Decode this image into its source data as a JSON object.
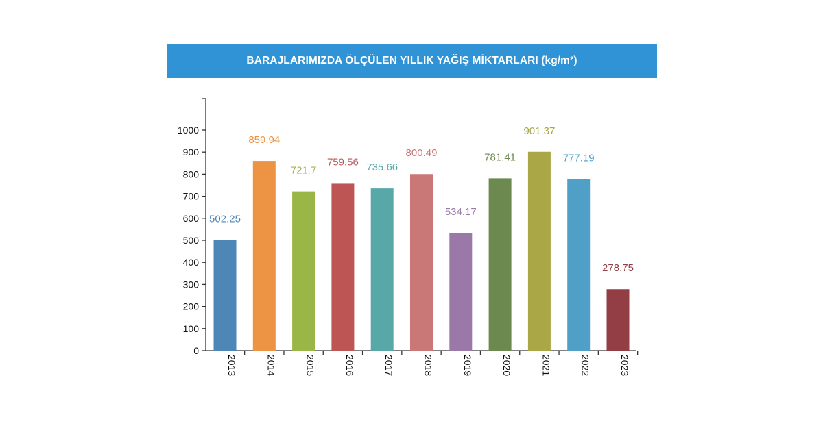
{
  "chart_data": {
    "type": "bar",
    "title": "BARAJLARIMIZDA ÖLÇÜLEN YILLIK YAĞIŞ MİKTARLARI (kg/m²)",
    "xlabel": "",
    "ylabel": "",
    "ylim": [
      0,
      1000
    ],
    "yticks": [
      0,
      100,
      200,
      300,
      400,
      500,
      600,
      700,
      800,
      900,
      1000
    ],
    "grid": false,
    "categories": [
      "2013",
      "2014",
      "2015",
      "2016",
      "2017",
      "2018",
      "2019",
      "2020",
      "2021",
      "2022",
      "2023"
    ],
    "values": [
      502.25,
      859.94,
      721.7,
      759.56,
      735.66,
      800.49,
      534.17,
      781.41,
      901.37,
      777.19,
      278.75
    ],
    "value_labels": [
      "502.25",
      "859.94",
      "721.7",
      "759.56",
      "735.66",
      "800.49",
      "534.17",
      "781.41",
      "901.37",
      "777.19",
      "278.75"
    ],
    "bar_colors": [
      "#4f86b8",
      "#ec9444",
      "#9ab647",
      "#bd5555",
      "#58a8a8",
      "#ca7777",
      "#9a78a8",
      "#6c8a50",
      "#a9a746",
      "#4f9fc7",
      "#923e44"
    ],
    "label_colors": [
      "#4f86b8",
      "#ec9444",
      "#9ab647",
      "#bd5555",
      "#58a8a8",
      "#ca7777",
      "#9a78a8",
      "#6c8a50",
      "#a9a746",
      "#4f9fc7",
      "#923e44"
    ],
    "title_bar_color": "#2f93d6"
  }
}
